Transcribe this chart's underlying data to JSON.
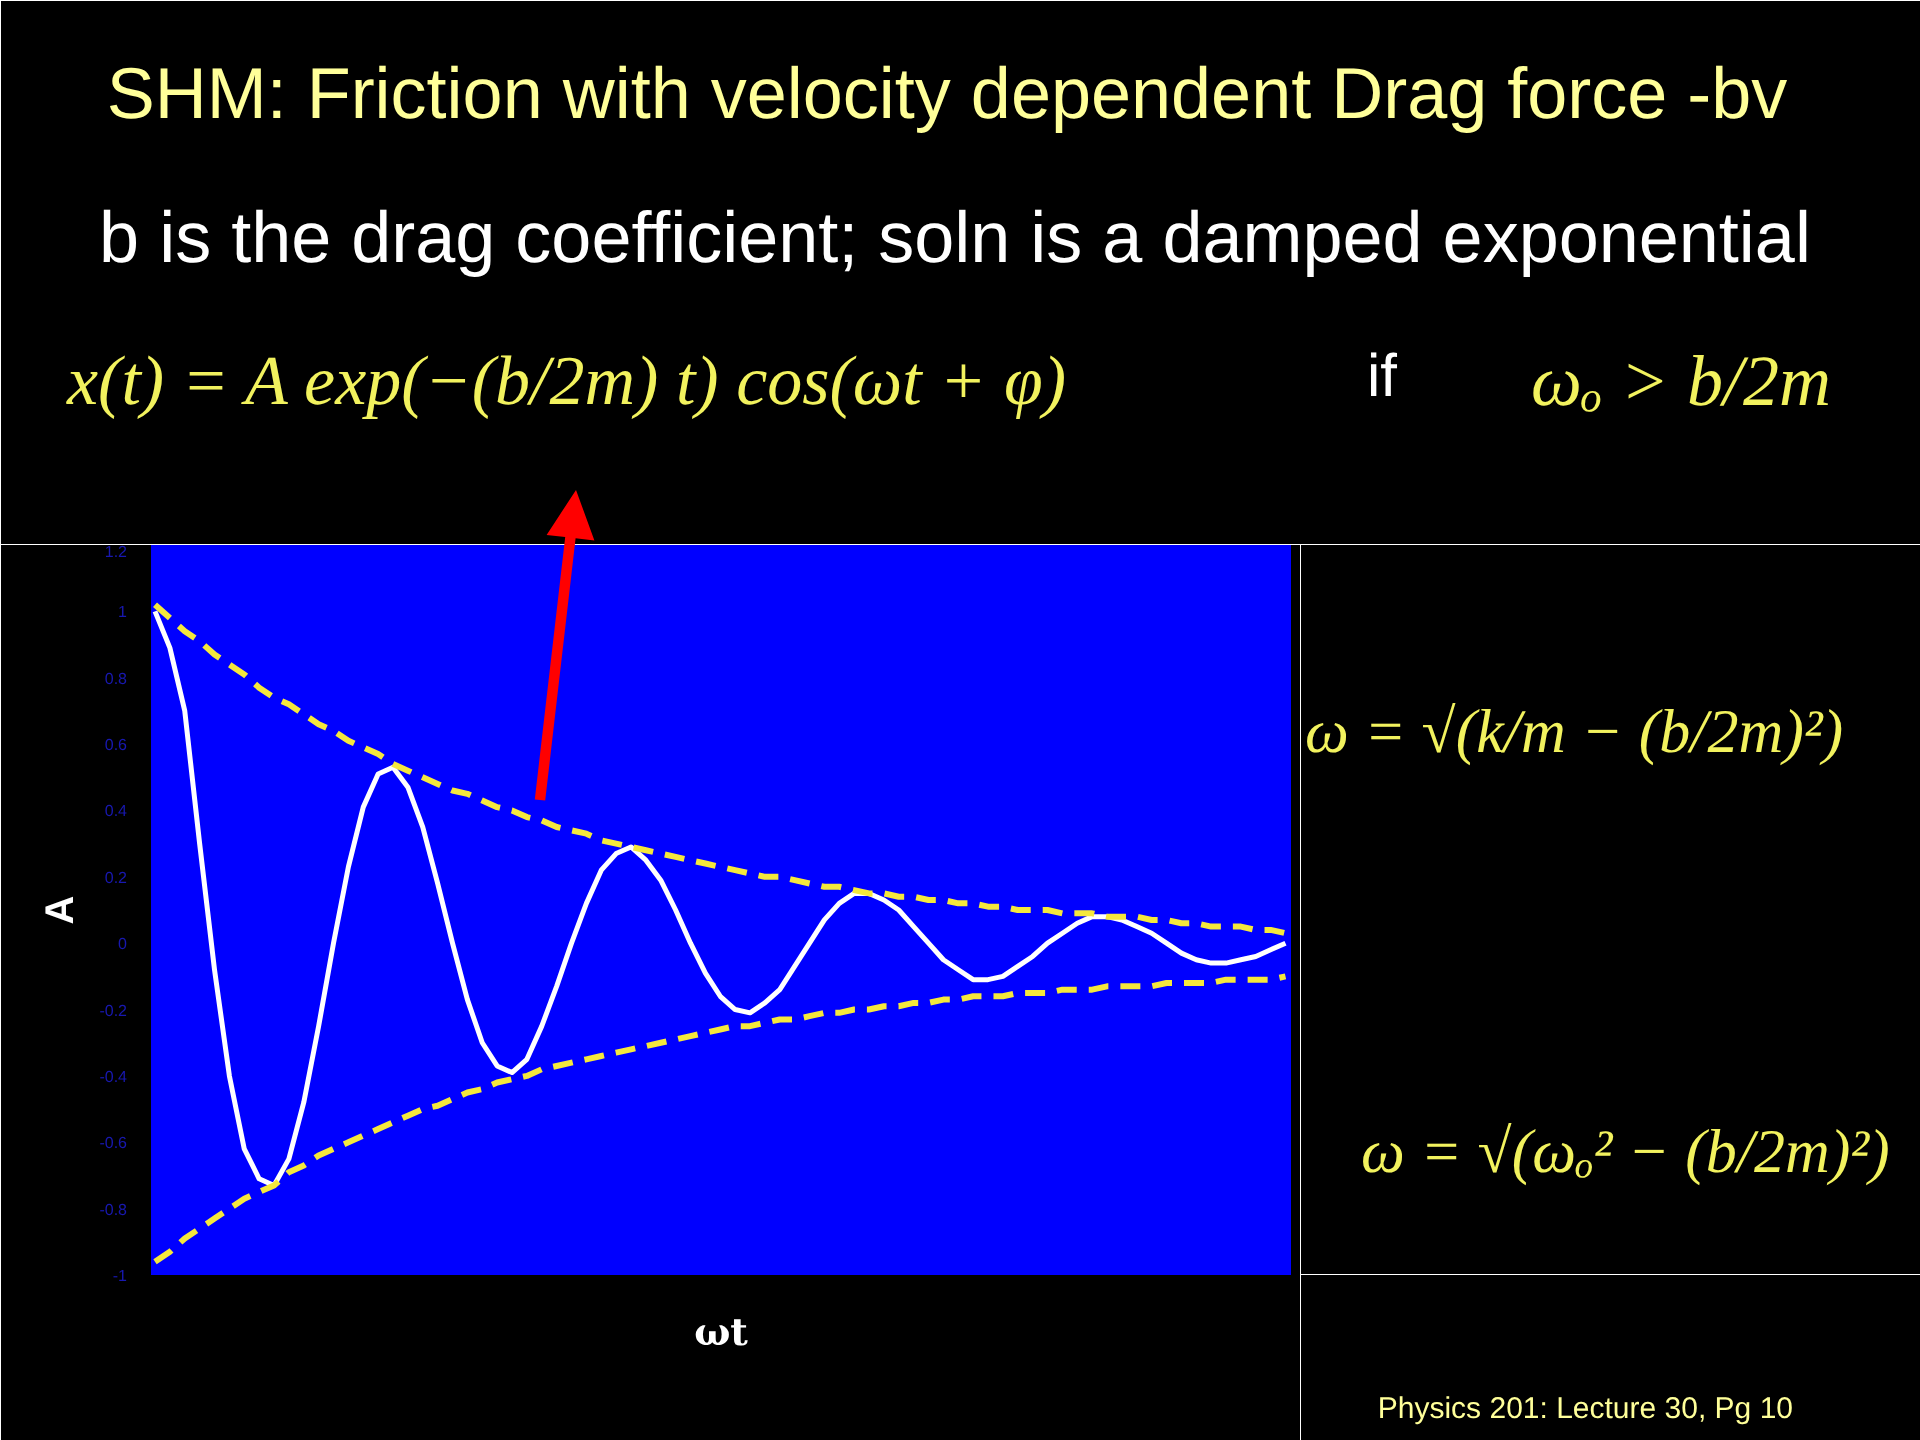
{
  "chart_data": {
    "type": "line",
    "title": "SHM: Friction with velocity dependent Drag force  -bv",
    "subtitle": "b is the drag coefficient; soln is a damped exponential",
    "xlabel": "ωt",
    "ylabel": "A",
    "categories": [
      null,
      null,
      null,
      null,
      null,
      null,
      null,
      null,
      null,
      null,
      null,
      null,
      null,
      null,
      null,
      null,
      null,
      null,
      null,
      null,
      null,
      null,
      null,
      null,
      null,
      null,
      null,
      null,
      null,
      null,
      null,
      null,
      null,
      null,
      null,
      null,
      null,
      null,
      null,
      null,
      null,
      null,
      null,
      null,
      null,
      null,
      null,
      null,
      null,
      null,
      null,
      null,
      null,
      null,
      null,
      null,
      null,
      null,
      null,
      null,
      null,
      null,
      null,
      null,
      null,
      null,
      null,
      null,
      null,
      null,
      null,
      null,
      null,
      null,
      null,
      null,
      null
    ],
    "series": [
      {
        "color": "#ffffff",
        "line_style": "solid",
        "values": [
          1.0,
          0.89,
          0.7,
          0.3,
          -0.08,
          -0.4,
          -0.62,
          -0.71,
          -0.73,
          -0.65,
          -0.48,
          -0.25,
          0,
          0.23,
          0.41,
          0.51,
          0.53,
          0.47,
          0.35,
          0.18,
          0,
          -0.17,
          -0.3,
          -0.37,
          -0.39,
          -0.35,
          -0.25,
          -0.13,
          0,
          0.12,
          0.22,
          0.27,
          0.29,
          0.25,
          0.19,
          0.1,
          0,
          -0.09,
          -0.16,
          -0.2,
          -0.21,
          -0.18,
          -0.14,
          -0.07,
          0,
          0.07,
          0.12,
          0.15,
          0.15,
          0.13,
          0.1,
          0.05,
          0,
          -0.05,
          -0.08,
          -0.11,
          -0.11,
          -0.1,
          -0.07,
          -0.04,
          0,
          0.03,
          0.06,
          0.08,
          0.08,
          0.07,
          0.05,
          0.03,
          0,
          -0.03,
          -0.05,
          -0.06,
          -0.06,
          -0.05,
          -0.04,
          -0.02,
          0
        ]
      },
      {
        "color": "#f5e83c",
        "line_style": "dashed",
        "values": [
          1.02,
          0.98,
          0.94,
          0.91,
          0.87,
          0.84,
          0.81,
          0.77,
          0.74,
          0.72,
          0.69,
          0.66,
          0.64,
          0.61,
          0.59,
          0.57,
          0.54,
          0.52,
          0.5,
          0.48,
          0.46,
          0.45,
          0.43,
          0.41,
          0.4,
          0.38,
          0.37,
          0.35,
          0.34,
          0.33,
          0.31,
          0.3,
          0.29,
          0.28,
          0.27,
          0.26,
          0.25,
          0.24,
          0.23,
          0.22,
          0.21,
          0.2,
          0.2,
          0.19,
          0.18,
          0.17,
          0.17,
          0.16,
          0.15,
          0.15,
          0.14,
          0.14,
          0.13,
          0.13,
          0.12,
          0.12,
          0.11,
          0.11,
          0.1,
          0.1,
          0.1,
          0.09,
          0.09,
          0.09,
          0.08,
          0.08,
          0.08,
          0.07,
          0.07,
          0.06,
          0.06,
          0.05,
          0.05,
          0.05,
          0.04,
          0.04,
          0.03
        ]
      },
      {
        "color": "#f5e83c",
        "line_style": "dashed",
        "values": [
          -0.96,
          -0.93,
          -0.89,
          -0.86,
          -0.83,
          -0.8,
          -0.77,
          -0.75,
          -0.73,
          -0.69,
          -0.67,
          -0.64,
          -0.62,
          -0.6,
          -0.58,
          -0.56,
          -0.54,
          -0.52,
          -0.5,
          -0.49,
          -0.47,
          -0.45,
          -0.44,
          -0.42,
          -0.41,
          -0.4,
          -0.38,
          -0.37,
          -0.36,
          -0.35,
          -0.34,
          -0.33,
          -0.32,
          -0.31,
          -0.3,
          -0.29,
          -0.28,
          -0.27,
          -0.26,
          -0.25,
          -0.25,
          -0.24,
          -0.23,
          -0.23,
          -0.22,
          -0.21,
          -0.21,
          -0.2,
          -0.2,
          -0.19,
          -0.19,
          -0.18,
          -0.18,
          -0.17,
          -0.17,
          -0.16,
          -0.16,
          -0.16,
          -0.15,
          -0.15,
          -0.15,
          -0.14,
          -0.14,
          -0.14,
          -0.13,
          -0.13,
          -0.13,
          -0.13,
          -0.12,
          -0.12,
          -0.12,
          -0.12,
          -0.11,
          -0.11,
          -0.11,
          -0.11,
          -0.1
        ]
      }
    ],
    "ylim": [
      -1,
      1.2
    ],
    "yticks": [
      -1,
      -0.8,
      -0.6,
      -0.4,
      -0.2,
      0,
      0.2,
      0.4,
      0.6,
      0.8,
      1,
      1.2
    ],
    "tick_labels": "y",
    "annotations": [
      "x(t) = A exp(−(b/2m) t) cos(ωt + φ)",
      "if",
      "ωₒ > b/2m",
      "ω = √(k/m − (b/2m)²)",
      "ω = √(ωₒ² − (b/2m)²)",
      "Physics 201: Lecture 30, Pg 10"
    ]
  }
}
